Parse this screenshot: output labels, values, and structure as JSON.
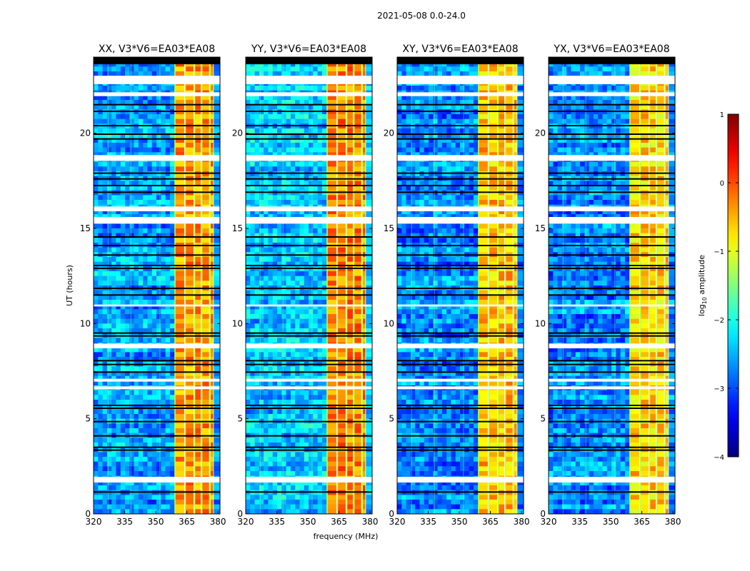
{
  "chart_data": {
    "type": "heatmap",
    "suptitle": "2021-05-08 0.0-24.0",
    "xlabel": "frequency (MHz)",
    "ylabel": "UT (hours)",
    "xlim": [
      320,
      381
    ],
    "ylim": [
      0,
      24
    ],
    "xticks": [
      320,
      335,
      350,
      365,
      380
    ],
    "yticks": [
      0,
      5,
      10,
      15,
      20
    ],
    "colorbar": {
      "label": "log10 amplitude",
      "label_main": "log",
      "label_sub": "10",
      "label_tail": " amplitude",
      "range": [
        -4,
        1
      ],
      "ticks": [
        "1",
        "0",
        "−1",
        "−2",
        "−3",
        "−4"
      ],
      "tick_values": [
        1,
        0,
        -1,
        -2,
        -3,
        -4
      ],
      "colormap": "jet"
    },
    "bright_band_mhz": [
      359,
      378
    ],
    "band_subchannels_mhz": [
      [
        359,
        364
      ],
      [
        364,
        368.5
      ],
      [
        368.5,
        372
      ],
      [
        372,
        376
      ],
      [
        376,
        378
      ]
    ],
    "flagged_white_ut_hours": [
      [
        23.02,
        22.58
      ],
      [
        22.15,
        21.95
      ],
      [
        18.85,
        18.55
      ],
      [
        16.15,
        15.9
      ],
      [
        15.6,
        15.25
      ],
      [
        11.0,
        10.9
      ],
      [
        8.95,
        8.7
      ],
      [
        7.1,
        6.95
      ],
      [
        6.7,
        6.55
      ],
      [
        1.95,
        1.65
      ]
    ],
    "flagged_black_ut_hours": [
      23.9,
      23.85,
      21.5,
      21.15,
      20.4,
      19.95,
      19.7,
      17.9,
      17.6,
      17.25,
      16.9,
      14.55,
      14.1,
      13.6,
      13.05,
      12.9,
      11.85,
      11.5,
      9.5,
      9.35,
      8.05,
      7.85,
      7.45,
      5.7,
      5.55,
      4.85,
      4.1,
      3.5,
      3.35,
      1.15
    ],
    "panels": [
      {
        "title": "XX, V3*V6=EA03*EA08",
        "background_level": -2.6,
        "band_level": -0.4
      },
      {
        "title": "YY, V3*V6=EA03*EA08",
        "background_level": -2.4,
        "band_level": -0.3
      },
      {
        "title": "XY, V3*V6=EA03*EA08",
        "background_level": -2.7,
        "band_level": -0.6
      },
      {
        "title": "YX, V3*V6=EA03*EA08",
        "background_level": -2.7,
        "band_level": -0.7
      }
    ]
  },
  "colors": {
    "flag_white": "#ffffff",
    "flag_black": "#000000"
  }
}
